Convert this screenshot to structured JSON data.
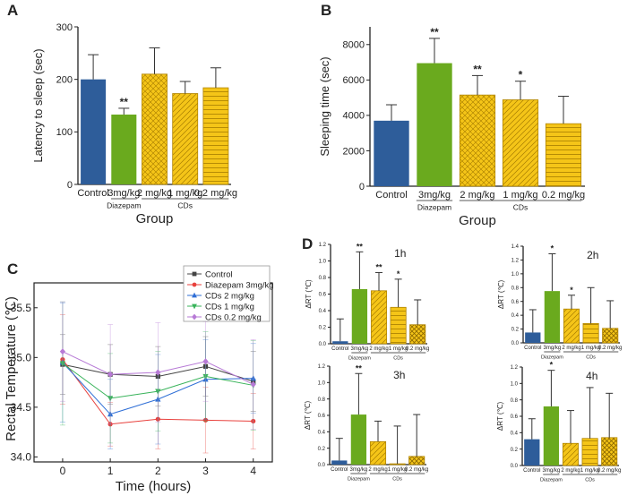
{
  "colors": {
    "control": "#2e5d9a",
    "diazepam": "#6aaa1e",
    "cds": "#f5c518",
    "cds_stroke": "#b08400",
    "axis": "#222222",
    "errorbar": "#333333"
  },
  "panels": {
    "A": "A",
    "B": "B",
    "C": "C",
    "D": "D"
  },
  "chart_data": [
    {
      "id": "A",
      "type": "bar",
      "ylabel": "Latency to sleep (sec)",
      "xlabel": "Group",
      "ylim": [
        0,
        300
      ],
      "yticks": [
        0,
        100,
        200,
        300
      ],
      "categories": [
        "Control",
        "3mg/kg",
        "2 mg/kg",
        "1 mg/kg",
        "0.2 mg/kg"
      ],
      "values": [
        200,
        133,
        210,
        173,
        184
      ],
      "errors": [
        47,
        12,
        50,
        23,
        38
      ],
      "significance": [
        "",
        "**",
        "",
        "",
        ""
      ],
      "group_labels": [
        {
          "label": "Diazepam",
          "from": 1,
          "to": 1
        },
        {
          "label": "CDs",
          "from": 2,
          "to": 4
        }
      ]
    },
    {
      "id": "B",
      "type": "bar",
      "ylabel": "Sleeping time (sec)",
      "xlabel": "Group",
      "ylim": [
        0,
        9000
      ],
      "yticks": [
        0,
        2000,
        4000,
        6000,
        8000
      ],
      "categories": [
        "Control",
        "3mg/kg",
        "2 mg/kg",
        "1 mg/kg",
        "0.2 mg/kg"
      ],
      "values": [
        3700,
        6950,
        5150,
        4880,
        3530
      ],
      "errors": [
        900,
        1400,
        1100,
        1050,
        1550
      ],
      "significance": [
        "",
        "**",
        "**",
        "*",
        ""
      ],
      "group_labels": [
        {
          "label": "Diazepam",
          "from": 1,
          "to": 1
        },
        {
          "label": "CDs",
          "from": 2,
          "to": 4
        }
      ]
    },
    {
      "id": "C",
      "type": "line",
      "ylabel": "Rectal Temperature (℃)",
      "xlabel": "Time (hours)",
      "x": [
        0,
        1,
        2,
        3,
        4
      ],
      "xlim": [
        -0.6,
        4.4
      ],
      "ylim": [
        33.95,
        35.75
      ],
      "yticks": [
        34.0,
        34.5,
        35.0,
        35.5
      ],
      "ytick_labels": [
        "34.0",
        "34.5",
        "35.0",
        "35.5"
      ],
      "legend_position": "top-right",
      "series": [
        {
          "name": "Control",
          "color": "#444444",
          "marker": "square",
          "values": [
            34.93,
            34.83,
            34.81,
            34.91,
            34.76
          ],
          "errors": [
            0.3,
            0.3,
            0.3,
            0.3,
            0.3
          ]
        },
        {
          "name": "Diazepam 3mg/kg",
          "color": "#e8403c",
          "marker": "circle",
          "values": [
            34.98,
            34.33,
            34.38,
            34.37,
            34.36
          ],
          "errors": [
            0.45,
            0.22,
            0.3,
            0.33,
            0.28
          ]
        },
        {
          "name": "CDs 2 mg/kg",
          "color": "#2f6fd6",
          "marker": "triangle-up",
          "values": [
            34.95,
            34.43,
            34.58,
            34.78,
            34.79
          ],
          "errors": [
            0.6,
            0.35,
            0.45,
            0.4,
            0.35
          ]
        },
        {
          "name": "CDs 1 mg/kg",
          "color": "#38b35a",
          "marker": "triangle-down",
          "values": [
            34.94,
            34.59,
            34.66,
            34.81,
            34.72
          ],
          "errors": [
            0.62,
            0.45,
            0.4,
            0.45,
            0.45
          ]
        },
        {
          "name": "CDs 0.2 mg/kg",
          "color": "#b77ad6",
          "marker": "diamond",
          "values": [
            35.06,
            34.83,
            34.85,
            34.96,
            34.73
          ],
          "errors": [
            0.5,
            0.5,
            0.5,
            0.4,
            0.45
          ]
        }
      ]
    },
    {
      "id": "D1",
      "type": "bar",
      "title": "1h",
      "ylabel": "ΔRT (℃)",
      "ylim": [
        0,
        1.2
      ],
      "yticks": [
        0.0,
        0.2,
        0.4,
        0.6,
        0.8,
        1.0,
        1.2
      ],
      "ytick_labels": [
        "0.0",
        "0.2",
        "0.4",
        "0.6",
        "0.8",
        "1.0",
        "1.2"
      ],
      "categories": [
        "Control",
        "3mg/kg",
        "2 mg/kg",
        "1 mg/kg",
        "0.2 mg/kg"
      ],
      "values": [
        0.03,
        0.66,
        0.64,
        0.44,
        0.23
      ],
      "errors": [
        0.27,
        0.45,
        0.22,
        0.34,
        0.3
      ],
      "significance": [
        "",
        "**",
        "**",
        "*",
        ""
      ],
      "group_labels": [
        {
          "label": "Diazepam",
          "from": 1,
          "to": 1
        },
        {
          "label": "CDs",
          "from": 2,
          "to": 4
        }
      ]
    },
    {
      "id": "D2",
      "type": "bar",
      "title": "2h",
      "ylabel": "ΔRT (℃)",
      "ylim": [
        0,
        1.4
      ],
      "yticks": [
        0.0,
        0.2,
        0.4,
        0.6,
        0.8,
        1.0,
        1.2,
        1.4
      ],
      "ytick_labels": [
        "0.0",
        "0.2",
        "0.4",
        "0.6",
        "0.8",
        "1.0",
        "1.2",
        "1.4"
      ],
      "categories": [
        "Control",
        "3mg/kg",
        "2 mg/kg",
        "1 mg/kg",
        "0.2 mg/kg"
      ],
      "values": [
        0.15,
        0.75,
        0.49,
        0.28,
        0.21
      ],
      "errors": [
        0.33,
        0.54,
        0.2,
        0.52,
        0.4
      ],
      "significance": [
        "",
        "*",
        "*",
        "",
        ""
      ],
      "group_labels": [
        {
          "label": "Diazepam",
          "from": 1,
          "to": 1
        },
        {
          "label": "CDs",
          "from": 2,
          "to": 4
        }
      ]
    },
    {
      "id": "D3",
      "type": "bar",
      "title": "3h",
      "ylabel": "ΔRT (℃)",
      "ylim": [
        0,
        1.2
      ],
      "yticks": [
        0.0,
        0.2,
        0.4,
        0.6,
        0.8,
        1.0,
        1.2
      ],
      "ytick_labels": [
        "0.0",
        "0.2",
        "0.4",
        "0.6",
        "0.8",
        "1.0",
        "1.2"
      ],
      "categories": [
        "Control",
        "3mg/kg",
        "2 mg/kg",
        "1 mg/kg",
        "0.2 mg/kg"
      ],
      "values": [
        0.05,
        0.61,
        0.28,
        0.01,
        0.1
      ],
      "errors": [
        0.27,
        0.5,
        0.25,
        0.46,
        0.51
      ],
      "significance": [
        "",
        "**",
        "",
        "",
        ""
      ],
      "group_labels": [
        {
          "label": "Diazepam",
          "from": 1,
          "to": 1
        },
        {
          "label": "CDs",
          "from": 2,
          "to": 4
        }
      ]
    },
    {
      "id": "D4",
      "type": "bar",
      "title": "4h",
      "ylabel": "ΔRT (℃)",
      "ylim": [
        0,
        1.2
      ],
      "yticks": [
        0.0,
        0.2,
        0.4,
        0.6,
        0.8,
        1.0,
        1.2
      ],
      "ytick_labels": [
        "0.0",
        "0.2",
        "0.4",
        "0.6",
        "0.8",
        "1.0",
        "1.2"
      ],
      "categories": [
        "Control",
        "3mg/kg",
        "2 mg/kg",
        "1 mg/kg",
        "0.2 mg/kg"
      ],
      "values": [
        0.32,
        0.72,
        0.27,
        0.33,
        0.34
      ],
      "errors": [
        0.25,
        0.44,
        0.4,
        0.62,
        0.54
      ],
      "significance": [
        "",
        "*",
        "",
        "",
        ""
      ],
      "group_labels": [
        {
          "label": "Diazepam",
          "from": 1,
          "to": 1
        },
        {
          "label": "CDs",
          "from": 2,
          "to": 4
        }
      ]
    }
  ]
}
